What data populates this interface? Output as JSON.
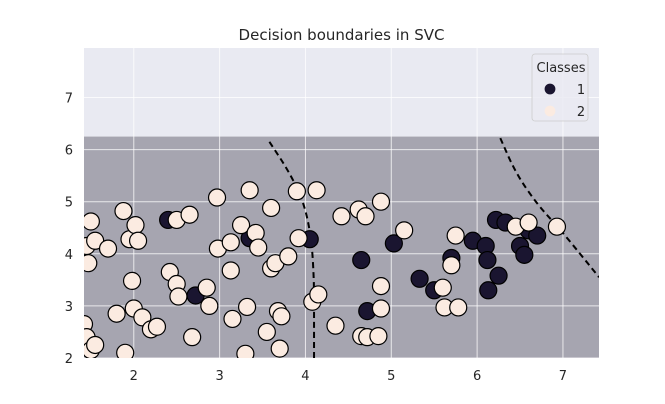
{
  "chart_data": {
    "type": "scatter",
    "title": "Decision boundaries in SVC",
    "xlabel": "",
    "ylabel": "",
    "xlim": [
      1.42,
      7.42
    ],
    "ylim": [
      2.0,
      7.95
    ],
    "xticks": [
      2,
      3,
      4,
      5,
      6,
      7
    ],
    "yticks": [
      2,
      3,
      4,
      5,
      6,
      7
    ],
    "grid": true,
    "legend": {
      "title": "Classes",
      "placement": "top-right",
      "entries": [
        "1",
        "2"
      ]
    },
    "regions": [
      {
        "label": "1",
        "y_from": 6.25,
        "y_to": 7.95,
        "color": "#e9eaf2"
      },
      {
        "label": "2",
        "y_from": 2.0,
        "y_to": 6.25,
        "color": "#a6a5b0"
      }
    ],
    "boundaries": [
      {
        "name": "left",
        "points": [
          [
            3.58,
            6.15
          ],
          [
            3.8,
            5.6
          ],
          [
            3.98,
            5.0
          ],
          [
            4.07,
            4.3
          ],
          [
            4.1,
            3.5
          ],
          [
            4.1,
            2.8
          ],
          [
            4.1,
            2.0
          ]
        ]
      },
      {
        "name": "right",
        "points": [
          [
            6.27,
            6.22
          ],
          [
            6.45,
            5.55
          ],
          [
            6.7,
            4.95
          ],
          [
            6.95,
            4.5
          ],
          [
            7.2,
            4.0
          ],
          [
            7.42,
            3.55
          ]
        ]
      }
    ],
    "series": [
      {
        "name": "1",
        "color": "#1a1530",
        "points": [
          [
            2.4,
            4.65
          ],
          [
            3.35,
            4.3
          ],
          [
            4.05,
            4.28
          ],
          [
            2.72,
            3.2
          ],
          [
            4.65,
            3.88
          ],
          [
            5.03,
            4.2
          ],
          [
            4.72,
            2.9
          ],
          [
            5.33,
            3.52
          ],
          [
            5.5,
            3.3
          ],
          [
            5.7,
            3.92
          ],
          [
            5.95,
            4.25
          ],
          [
            6.1,
            4.15
          ],
          [
            6.12,
            3.88
          ],
          [
            6.13,
            3.3
          ],
          [
            6.25,
            3.58
          ],
          [
            6.22,
            4.65
          ],
          [
            6.33,
            4.6
          ],
          [
            6.5,
            4.15
          ],
          [
            6.55,
            3.98
          ],
          [
            6.6,
            4.45
          ],
          [
            6.7,
            4.35
          ]
        ]
      },
      {
        "name": "2",
        "color": "#fbebe1",
        "points": [
          [
            1.45,
            4.15
          ],
          [
            1.47,
            3.82
          ],
          [
            1.5,
            4.62
          ],
          [
            1.55,
            4.25
          ],
          [
            1.42,
            2.65
          ],
          [
            1.45,
            2.4
          ],
          [
            1.5,
            2.15
          ],
          [
            1.55,
            2.25
          ],
          [
            1.7,
            4.1
          ],
          [
            1.8,
            2.85
          ],
          [
            1.88,
            4.82
          ],
          [
            1.9,
            2.1
          ],
          [
            1.95,
            4.28
          ],
          [
            1.98,
            3.48
          ],
          [
            2.0,
            2.95
          ],
          [
            2.02,
            4.55
          ],
          [
            2.05,
            4.25
          ],
          [
            2.1,
            2.78
          ],
          [
            2.2,
            2.55
          ],
          [
            2.27,
            2.6
          ],
          [
            2.42,
            3.65
          ],
          [
            2.5,
            4.65
          ],
          [
            2.5,
            3.42
          ],
          [
            2.52,
            3.18
          ],
          [
            2.65,
            4.75
          ],
          [
            2.68,
            2.4
          ],
          [
            2.85,
            3.35
          ],
          [
            2.88,
            3.0
          ],
          [
            2.97,
            5.08
          ],
          [
            2.98,
            4.1
          ],
          [
            3.13,
            4.22
          ],
          [
            3.13,
            3.68
          ],
          [
            3.15,
            2.75
          ],
          [
            3.25,
            4.55
          ],
          [
            3.32,
            2.98
          ],
          [
            3.35,
            5.22
          ],
          [
            3.3,
            2.08
          ],
          [
            3.42,
            4.4
          ],
          [
            3.45,
            4.12
          ],
          [
            3.55,
            2.5
          ],
          [
            3.6,
            3.72
          ],
          [
            3.6,
            4.88
          ],
          [
            3.65,
            3.82
          ],
          [
            3.68,
            2.9
          ],
          [
            3.7,
            2.18
          ],
          [
            3.72,
            2.8
          ],
          [
            3.8,
            3.95
          ],
          [
            3.9,
            5.2
          ],
          [
            3.92,
            4.3
          ],
          [
            4.08,
            3.08
          ],
          [
            4.15,
            3.22
          ],
          [
            4.13,
            5.22
          ],
          [
            4.35,
            2.62
          ],
          [
            4.42,
            4.72
          ],
          [
            4.62,
            4.85
          ],
          [
            4.65,
            2.42
          ],
          [
            4.7,
            4.72
          ],
          [
            4.72,
            2.4
          ],
          [
            4.85,
            2.42
          ],
          [
            4.88,
            5.0
          ],
          [
            4.88,
            3.38
          ],
          [
            4.88,
            2.95
          ],
          [
            5.15,
            4.45
          ],
          [
            5.6,
            3.35
          ],
          [
            5.62,
            2.97
          ],
          [
            5.7,
            3.78
          ],
          [
            5.75,
            4.35
          ],
          [
            5.78,
            2.97
          ],
          [
            6.45,
            4.52
          ],
          [
            6.6,
            4.6
          ],
          [
            6.93,
            4.52
          ]
        ]
      }
    ]
  }
}
